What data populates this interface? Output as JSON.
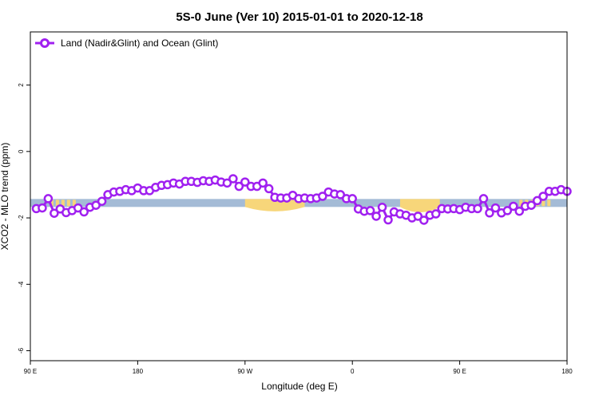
{
  "chart_data": {
    "type": "line",
    "title": "5S-0 June (Ver 10)   2015-01-01 to 2020-12-18",
    "xlabel": "Longitude (deg E)",
    "ylabel": "XCO2 - MLO trend (ppm)",
    "xlim": [
      -90,
      180
    ],
    "ylim": [
      -6.3,
      3.6
    ],
    "x_ticks": [
      {
        "value": -90,
        "label": "90 E"
      },
      {
        "value": -36,
        "label": "180"
      },
      {
        "value": 18,
        "label": "90 W"
      },
      {
        "value": 72,
        "label": "0"
      },
      {
        "value": 126,
        "label": "90 E"
      },
      {
        "value": 180,
        "label": "180"
      }
    ],
    "y_ticks": [
      {
        "value": 2,
        "label": "2"
      },
      {
        "value": 0,
        "label": "0"
      },
      {
        "value": -2,
        "label": "-2"
      },
      {
        "value": -4,
        "label": "-4"
      },
      {
        "value": -6,
        "label": "-6"
      }
    ],
    "legend": {
      "position": "top-left"
    },
    "colors": {
      "series": "#a020f0",
      "ocean_band": "#a4bbd6",
      "land_band": "#f7d67a"
    },
    "reference_band": {
      "y_center": -1.55,
      "half_width": 0.12
    },
    "land_regions": [
      {
        "x": [
          -80,
          -66
        ],
        "type": "dots"
      },
      {
        "x": [
          18,
          48
        ],
        "type": "hump",
        "depth": 0.12
      },
      {
        "x": [
          96,
          116
        ],
        "type": "hump",
        "depth": 0.18
      },
      {
        "x": [
          156,
          172
        ],
        "type": "dots"
      }
    ],
    "series": [
      {
        "name": "Land (Nadir&Glint) and Ocean (Glint)",
        "x": [
          -87,
          -84,
          -81,
          -78,
          -75,
          -72,
          -69,
          -66,
          -63,
          -60,
          -57,
          -54,
          -51,
          -48,
          -45,
          -42,
          -39,
          -36,
          -33,
          -30,
          -27,
          -24,
          -21,
          -18,
          -15,
          -12,
          -9,
          -6,
          -3,
          0,
          3,
          6,
          9,
          12,
          15,
          18,
          21,
          24,
          27,
          30,
          33,
          36,
          39,
          42,
          45,
          48,
          51,
          54,
          57,
          60,
          63,
          66,
          69,
          72,
          75,
          78,
          81,
          84,
          87,
          90,
          93,
          96,
          99,
          102,
          105,
          108,
          111,
          114,
          117,
          120,
          123,
          126,
          129,
          132,
          135,
          138,
          141,
          144,
          147,
          150,
          153,
          156,
          159,
          162,
          165,
          168,
          171,
          174,
          177,
          180
        ],
        "y": [
          -1.72,
          -1.7,
          -1.42,
          -1.86,
          -1.73,
          -1.84,
          -1.78,
          -1.7,
          -1.82,
          -1.68,
          -1.62,
          -1.5,
          -1.3,
          -1.22,
          -1.2,
          -1.15,
          -1.18,
          -1.1,
          -1.18,
          -1.18,
          -1.08,
          -1.02,
          -1.0,
          -0.95,
          -0.98,
          -0.9,
          -0.9,
          -0.93,
          -0.88,
          -0.9,
          -0.86,
          -0.92,
          -0.95,
          -0.82,
          -1.05,
          -0.92,
          -1.05,
          -1.05,
          -0.95,
          -1.12,
          -1.38,
          -1.4,
          -1.4,
          -1.32,
          -1.42,
          -1.4,
          -1.42,
          -1.4,
          -1.35,
          -1.22,
          -1.28,
          -1.3,
          -1.42,
          -1.42,
          -1.73,
          -1.8,
          -1.78,
          -1.95,
          -1.68,
          -2.06,
          -1.82,
          -1.88,
          -1.92,
          -2.0,
          -1.95,
          -2.07,
          -1.92,
          -1.88,
          -1.72,
          -1.73,
          -1.72,
          -1.75,
          -1.68,
          -1.72,
          -1.72,
          -1.42,
          -1.85,
          -1.7,
          -1.85,
          -1.78,
          -1.65,
          -1.8,
          -1.65,
          -1.62,
          -1.48,
          -1.35,
          -1.2,
          -1.2,
          -1.15,
          -1.2
        ]
      }
    ]
  }
}
